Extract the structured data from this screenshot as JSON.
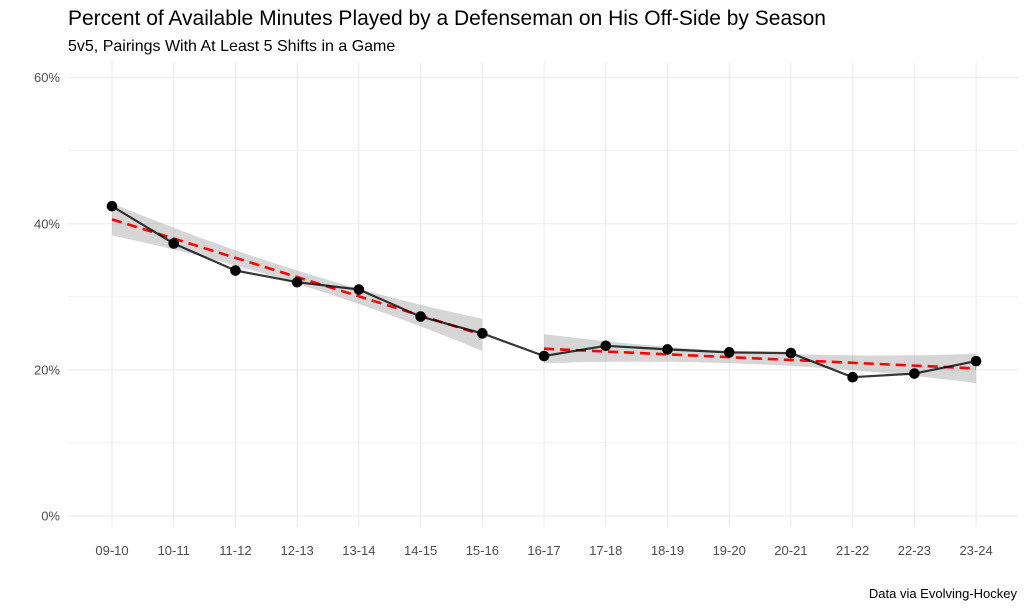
{
  "chart_data": {
    "type": "line",
    "title": "Percent of Available Minutes Played by a Defenseman on His Off-Side by Season",
    "subtitle": "5v5, Pairings With At Least 5 Shifts in a Game",
    "caption": "Data via Evolving-Hockey",
    "xlabel": "",
    "ylabel": "",
    "categories": [
      "09-10",
      "10-11",
      "11-12",
      "12-13",
      "13-14",
      "14-15",
      "15-16",
      "16-17",
      "17-18",
      "18-19",
      "19-20",
      "20-21",
      "21-22",
      "22-23",
      "23-24"
    ],
    "series": [
      {
        "values": [
          42.4,
          37.3,
          33.6,
          32.0,
          31.0,
          27.3,
          25.0,
          21.9,
          23.3,
          22.8,
          22.4,
          22.3,
          19.0,
          19.5,
          21.2
        ]
      }
    ],
    "trends": [
      {
        "from": "09-10",
        "to": "15-16",
        "start": 40.6,
        "end": 24.8,
        "band_halfwidth_start": 2.2,
        "band_halfwidth_mid": 0.9,
        "band_halfwidth_end": 2.2
      },
      {
        "from": "16-17",
        "to": "23-24",
        "start": 22.9,
        "end": 20.2,
        "band_halfwidth_start": 2.0,
        "band_halfwidth_mid": 0.8,
        "band_halfwidth_end": 2.0
      }
    ],
    "yticks": [
      0,
      20,
      40,
      60
    ],
    "ytick_labels": [
      "0%",
      "20%",
      "40%",
      "60%"
    ],
    "ylim": [
      -1.5,
      62
    ],
    "grid": true,
    "colors": {
      "line": "#000000",
      "points": "#000000",
      "trend": "#ff0000",
      "band": "#999999",
      "grid": "#ebebeb",
      "background": "#ffffff"
    }
  }
}
